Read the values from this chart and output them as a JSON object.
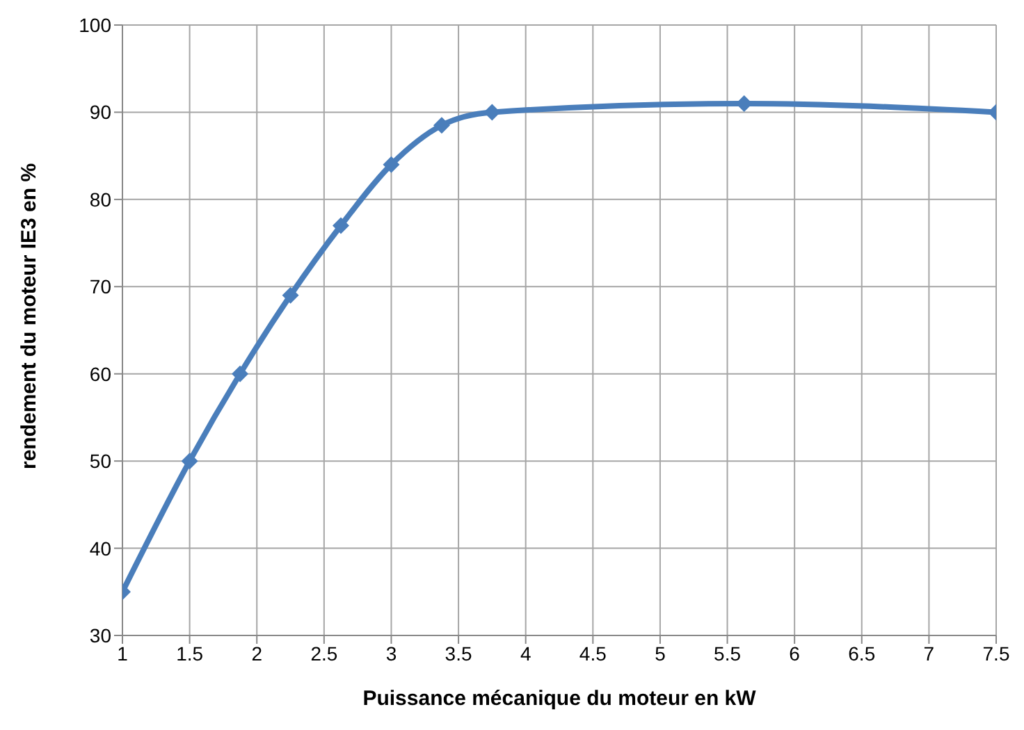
{
  "chart_data": {
    "type": "line",
    "xlabel": "Puissance mécanique du moteur en kW",
    "ylabel": "rendement du moteur IE3 en %",
    "x": [
      1,
      1.5,
      1.875,
      2.25,
      2.625,
      3,
      3.375,
      3.75,
      5.625,
      7.5
    ],
    "series": [
      {
        "color": "#4a7ebb",
        "values": [
          35,
          50,
          60,
          69,
          77,
          84,
          88.5,
          90,
          91,
          90
        ]
      }
    ],
    "xlim": [
      1,
      7.5
    ],
    "xticks": [
      1,
      1.5,
      2,
      2.5,
      3,
      3.5,
      4,
      4.5,
      5,
      5.5,
      6,
      6.5,
      7,
      7.5
    ],
    "ylim": [
      30,
      100
    ],
    "yticks": [
      30,
      40,
      50,
      60,
      70,
      80,
      90,
      100
    ],
    "grid": true,
    "marker": "diamond",
    "line_style": "solid"
  }
}
